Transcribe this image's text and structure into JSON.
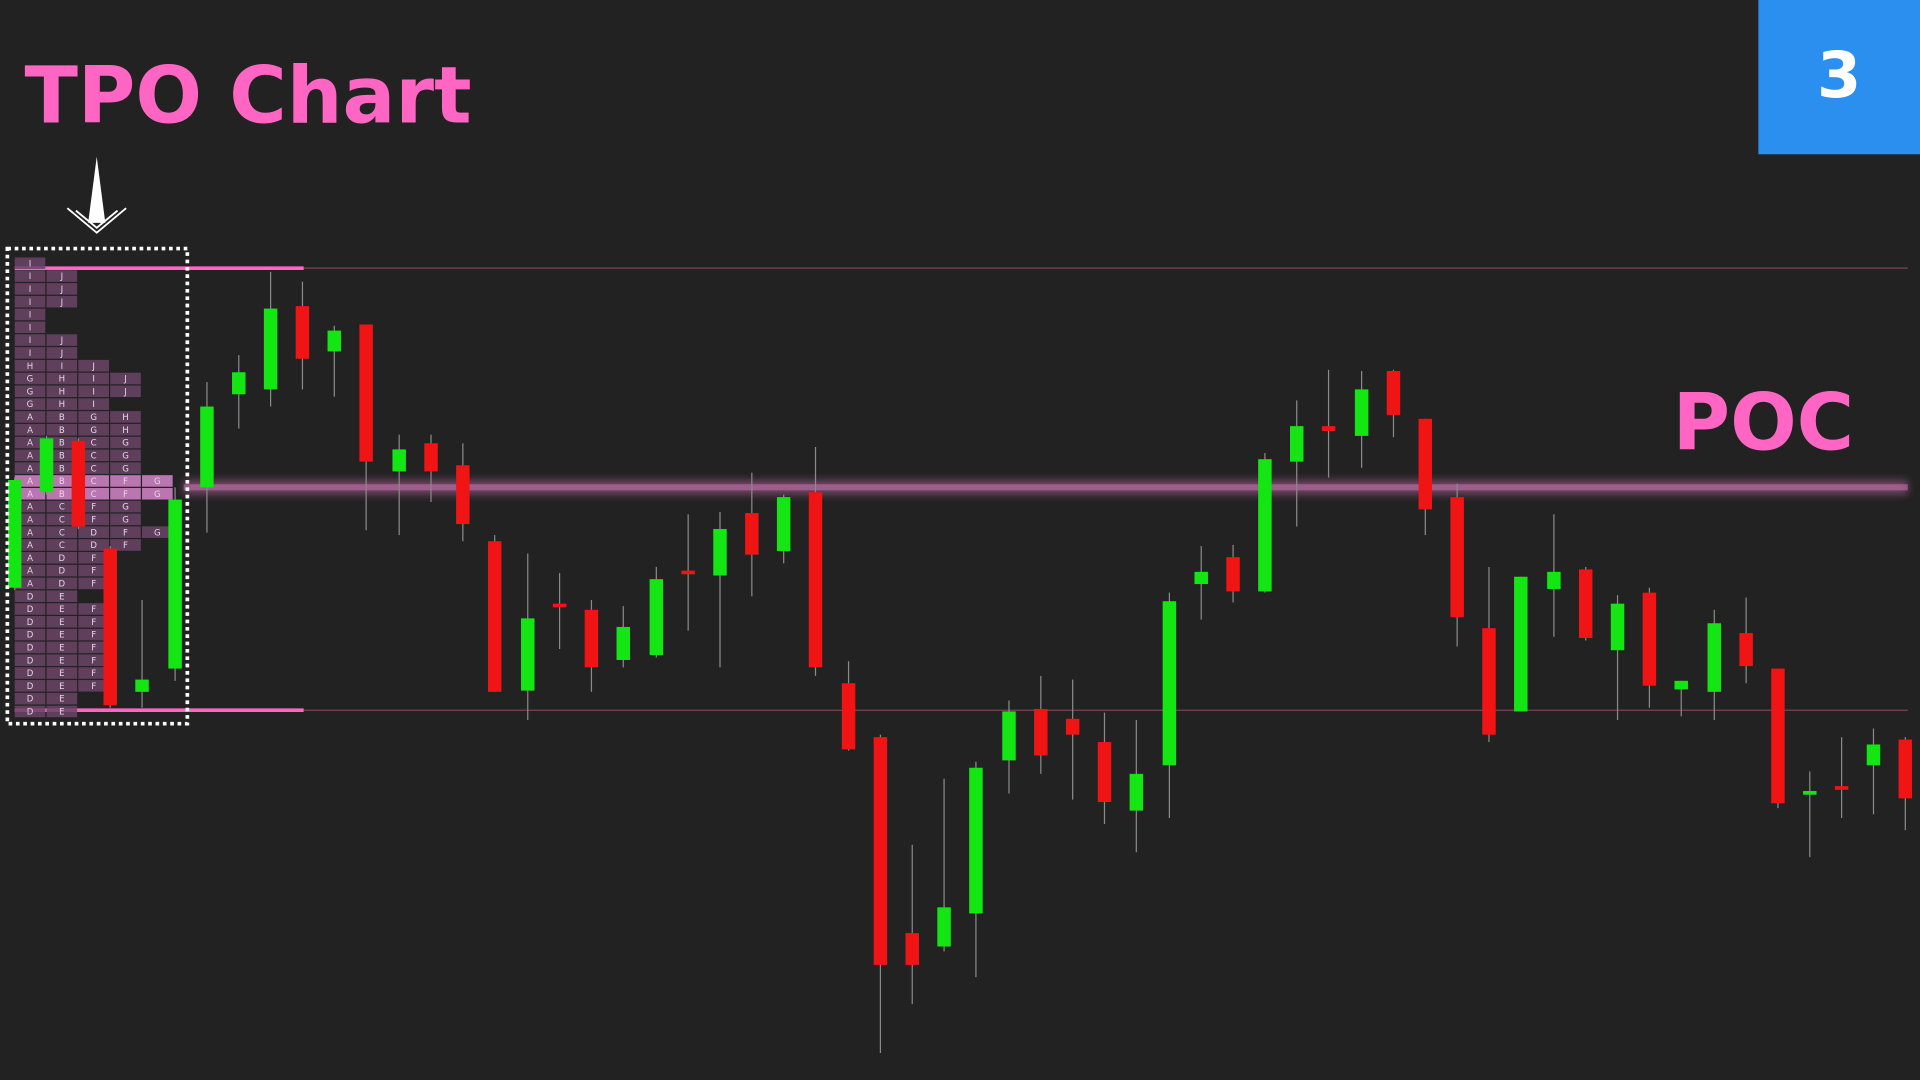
{
  "header": {
    "title": "TPO Chart",
    "badge": "3"
  },
  "poc_label": "POC",
  "tpo_rows": [
    [
      "I"
    ],
    [
      "I",
      "J"
    ],
    [
      "I",
      "J"
    ],
    [
      "I",
      "J"
    ],
    [
      "I"
    ],
    [
      "I"
    ],
    [
      "I",
      "J"
    ],
    [
      "I",
      "J"
    ],
    [
      "H",
      "I",
      "J"
    ],
    [
      "G",
      "H",
      "I",
      "J"
    ],
    [
      "G",
      "H",
      "I",
      "J"
    ],
    [
      "G",
      "H",
      "I"
    ],
    [
      "A",
      "B",
      "G",
      "H"
    ],
    [
      "A",
      "B",
      "G",
      "H"
    ],
    [
      "A",
      "B",
      "C",
      "G"
    ],
    [
      "A",
      "B",
      "C",
      "G"
    ],
    [
      "A",
      "B",
      "C",
      "G"
    ],
    [
      "A",
      "B",
      "C",
      "F",
      "G"
    ],
    [
      "A",
      "B",
      "C",
      "F",
      "G"
    ],
    [
      "A",
      "C",
      "F",
      "G"
    ],
    [
      "A",
      "C",
      "F",
      "G"
    ],
    [
      "A",
      "C",
      "D",
      "F",
      "G"
    ],
    [
      "A",
      "C",
      "D",
      "F"
    ],
    [
      "A",
      "D",
      "F"
    ],
    [
      "A",
      "D",
      "F"
    ],
    [
      "A",
      "D",
      "F"
    ],
    [
      "D",
      "E"
    ],
    [
      "D",
      "E",
      "F"
    ],
    [
      "D",
      "E",
      "F"
    ],
    [
      "D",
      "E",
      "F"
    ],
    [
      "D",
      "E",
      "F"
    ],
    [
      "D",
      "E",
      "F"
    ],
    [
      "D",
      "E",
      "F"
    ],
    [
      "D",
      "E",
      "F"
    ],
    [
      "D",
      "E"
    ],
    [
      "D",
      "E"
    ]
  ]
}
